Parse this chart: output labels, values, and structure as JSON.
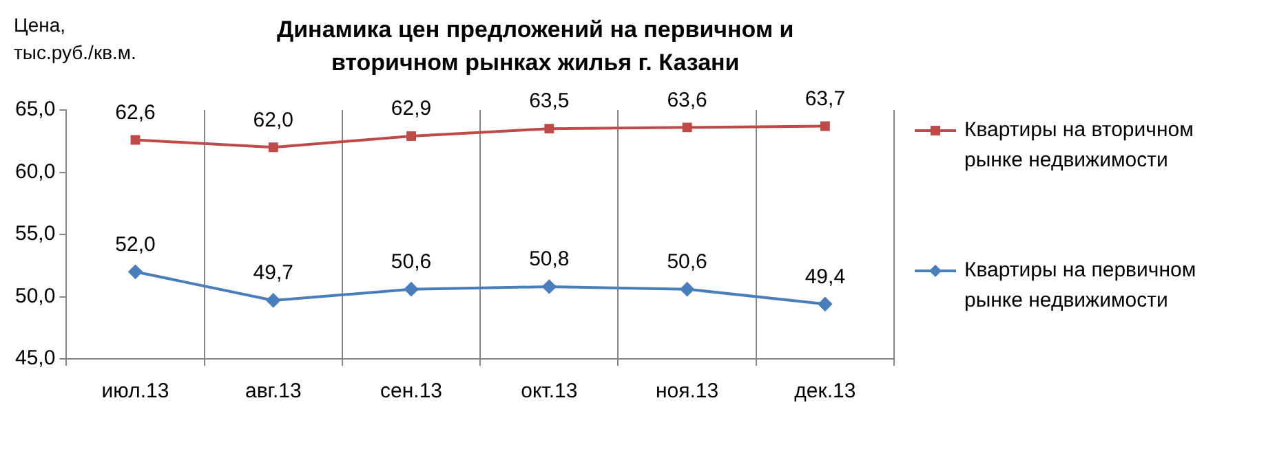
{
  "chart_data": {
    "type": "line",
    "title": "Динамика цен предложений на первичном и вторичном рынках жилья г. Казани",
    "ylabel": "Цена, тыс.руб./кв.м.",
    "categories": [
      "июл.13",
      "авг.13",
      "сен.13",
      "окт.13",
      "ноя.13",
      "дек.13"
    ],
    "series": [
      {
        "name": "Квартиры на вторичном рынке недвижимости",
        "color": "#be4b48",
        "marker": "square",
        "values": [
          62.6,
          62.0,
          62.9,
          63.5,
          63.6,
          63.7
        ],
        "value_labels": [
          "62,6",
          "62,0",
          "62,9",
          "63,5",
          "63,6",
          "63,7"
        ]
      },
      {
        "name": "Квартиры на первичном рынке недвижимости",
        "color": "#4a7ebb",
        "marker": "diamond",
        "values": [
          52.0,
          49.7,
          50.6,
          50.8,
          50.6,
          49.4
        ],
        "value_labels": [
          "52,0",
          "49,7",
          "50,6",
          "50,8",
          "50,6",
          "49,4"
        ]
      }
    ],
    "ylim": [
      45,
      65
    ],
    "yticks": [
      {
        "value": 45,
        "label": "45,0"
      },
      {
        "value": 50,
        "label": "50,0"
      },
      {
        "value": 55,
        "label": "55,0"
      },
      {
        "value": 60,
        "label": "60,0"
      },
      {
        "value": 65,
        "label": "65,0"
      }
    ],
    "grid": "x",
    "legend": "right",
    "line_style": "solid"
  }
}
